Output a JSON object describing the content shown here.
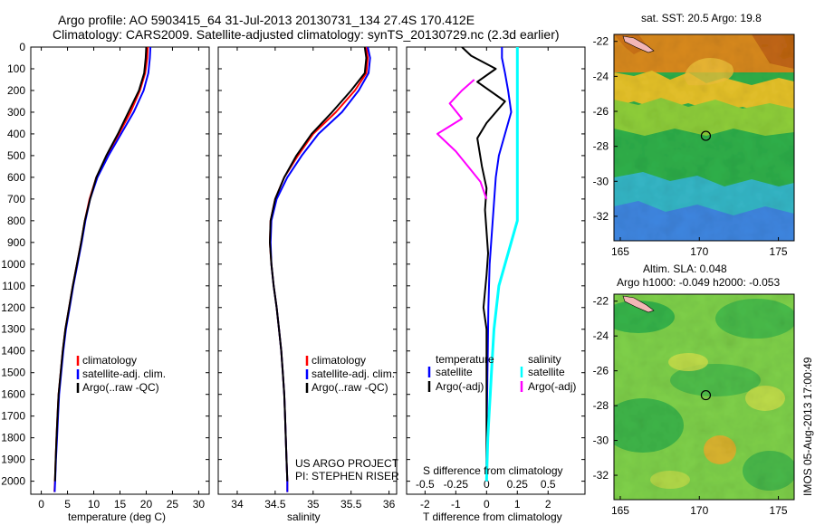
{
  "title_line1": "Argo profile: AO 5903415_64 31-Jul-2013 20130731_134 27.4S 170.412E",
  "title_line2": "Climatology: CARS2009. Satellite-adjusted climatology: synTS_20130729.nc (2.3d earlier)",
  "sst_title": "sat. SST: 20.5 Argo: 19.8",
  "sla_title1": "Altim. SLA: 0.048",
  "sla_title2": "Argo h1000: -0.049 h2000: -0.053",
  "project_line1": "US ARGO PROJECT",
  "project_line2": "PI: STEPHEN RISER",
  "watermark": "IMOS 05-Aug-2013 17:00:49",
  "legend_temp": [
    "climatology",
    "satellite-adj. clim.",
    "Argo(..raw -QC)"
  ],
  "legend_sal": [
    "climatology",
    "satellite-adj. clim.",
    "Argo(..raw -QC)"
  ],
  "legend_diff": {
    "temp_header": "temperature",
    "sal_header": "salinity",
    "temp_items": [
      "satellite",
      "Argo(-adj)"
    ],
    "sal_items": [
      "satellite",
      "Argo(-adj)"
    ]
  },
  "colors": {
    "climatology": "#ff0000",
    "satellite": "#0000ff",
    "argo": "#000000",
    "sal_satellite": "#00ffff",
    "sal_argo": "#ff00ff"
  },
  "chart_data": [
    {
      "type": "line",
      "id": "temperature",
      "xlabel": "temperature (deg C)",
      "ylabel": "",
      "xlim": [
        -2,
        32
      ],
      "ylim": [
        2060,
        0
      ],
      "xticks": [
        0,
        5,
        10,
        15,
        20,
        25,
        30
      ],
      "yticks": [
        0,
        100,
        200,
        300,
        400,
        500,
        600,
        700,
        800,
        900,
        1000,
        1100,
        1200,
        1300,
        1400,
        1500,
        1600,
        1700,
        1800,
        1900,
        2000
      ],
      "series": [
        {
          "name": "climatology",
          "color": "#ff0000",
          "x": [
            20.3,
            20.2,
            19.8,
            18.8,
            17.0,
            14.8,
            12.5,
            10.5,
            9.2,
            8.3,
            7.6,
            6.8,
            6.0,
            5.3,
            4.6,
            4.1,
            3.7,
            3.3,
            3.1,
            2.9,
            2.75,
            2.6,
            2.5
          ],
          "y": [
            0,
            50,
            120,
            200,
            300,
            400,
            500,
            600,
            700,
            800,
            900,
            1000,
            1100,
            1200,
            1300,
            1400,
            1500,
            1600,
            1700,
            1800,
            1900,
            2000,
            2050
          ]
        },
        {
          "name": "satellite-adj. clim.",
          "color": "#0000ff",
          "x": [
            20.8,
            20.7,
            20.4,
            19.5,
            17.6,
            15.2,
            12.8,
            10.7,
            9.3,
            8.4,
            7.7,
            6.9,
            6.1,
            5.4,
            4.7,
            4.2,
            3.8,
            3.4,
            3.2,
            3.0,
            2.8,
            2.65,
            2.55
          ],
          "y": [
            0,
            50,
            120,
            200,
            300,
            400,
            500,
            600,
            700,
            800,
            900,
            1000,
            1100,
            1200,
            1300,
            1400,
            1500,
            1600,
            1700,
            1800,
            1900,
            2000,
            2050
          ]
        },
        {
          "name": "Argo(..raw -QC)",
          "color": "#000000",
          "x": [
            20.0,
            19.9,
            19.6,
            18.6,
            16.6,
            14.6,
            12.4,
            10.5,
            9.3,
            8.3,
            7.6,
            6.8,
            6.0,
            5.3,
            4.6,
            4.1,
            3.7,
            3.3,
            3.1,
            2.9,
            2.75,
            2.6
          ],
          "y": [
            0,
            50,
            120,
            200,
            300,
            400,
            500,
            600,
            700,
            800,
            900,
            1000,
            1100,
            1200,
            1300,
            1400,
            1500,
            1600,
            1700,
            1800,
            1900,
            2000
          ]
        }
      ]
    },
    {
      "type": "line",
      "id": "salinity",
      "xlabel": "salinity",
      "ylabel": "",
      "xlim": [
        33.75,
        36.1
      ],
      "ylim": [
        2060,
        0
      ],
      "xticks": [
        34,
        34.5,
        35,
        35.5,
        36
      ],
      "series": [
        {
          "name": "climatology",
          "color": "#ff0000",
          "x": [
            35.7,
            35.72,
            35.7,
            35.55,
            35.3,
            35.0,
            34.8,
            34.62,
            34.5,
            34.44,
            34.43,
            34.45,
            34.48,
            34.52,
            34.55,
            34.58,
            34.6,
            34.62,
            34.63,
            34.64,
            34.65,
            34.66,
            34.66
          ],
          "y": [
            0,
            50,
            120,
            200,
            300,
            400,
            500,
            600,
            700,
            800,
            900,
            1000,
            1100,
            1200,
            1300,
            1400,
            1500,
            1600,
            1700,
            1800,
            1900,
            2000,
            2050
          ]
        },
        {
          "name": "satellite-adj. clim.",
          "color": "#0000ff",
          "x": [
            35.72,
            35.75,
            35.73,
            35.6,
            35.38,
            35.07,
            34.85,
            34.66,
            34.52,
            34.45,
            34.44,
            34.45,
            34.48,
            34.52,
            34.55,
            34.58,
            34.6,
            34.62,
            34.63,
            34.64,
            34.65,
            34.66,
            34.66
          ],
          "y": [
            0,
            50,
            120,
            200,
            300,
            400,
            500,
            600,
            700,
            800,
            900,
            1000,
            1100,
            1200,
            1300,
            1400,
            1500,
            1600,
            1700,
            1800,
            1900,
            2000,
            2050
          ]
        },
        {
          "name": "Argo(..raw -QC)",
          "color": "#000000",
          "x": [
            35.68,
            35.7,
            35.68,
            35.5,
            35.25,
            34.98,
            34.78,
            34.62,
            34.5,
            34.44,
            34.43,
            34.45,
            34.48,
            34.52,
            34.55,
            34.58,
            34.6,
            34.62,
            34.63,
            34.64,
            34.65,
            34.66
          ],
          "y": [
            0,
            50,
            120,
            200,
            300,
            400,
            500,
            600,
            700,
            800,
            900,
            1000,
            1100,
            1200,
            1300,
            1400,
            1500,
            1600,
            1700,
            1800,
            1900,
            2000
          ]
        }
      ]
    },
    {
      "type": "line",
      "id": "difference",
      "xlabel": "T difference from climatology",
      "top_axis_label": "S difference from climatology",
      "xlim": [
        -2.6,
        3.2
      ],
      "xticks": [
        -2,
        -1,
        0,
        1,
        2
      ],
      "top_ticks": [
        -0.5,
        -0.25,
        0,
        0.25,
        0.5
      ],
      "top_tick_labels": [
        "-0.5",
        "-0.25",
        "0",
        "0.25",
        "0.5"
      ],
      "series": [
        {
          "name": "temperature satellite",
          "color": "#0000ff",
          "x": [
            0.5,
            0.5,
            0.6,
            0.7,
            0.8,
            0.6,
            0.4,
            0.3,
            0.25,
            0.2,
            0.15,
            0.1,
            0.08,
            0.06,
            0.05,
            0.04,
            0.03,
            0.02,
            0.01,
            0.01,
            0.0
          ],
          "y": [
            0,
            50,
            120,
            200,
            300,
            400,
            500,
            600,
            700,
            800,
            900,
            1000,
            1100,
            1200,
            1300,
            1400,
            1500,
            1600,
            1700,
            1800,
            2000
          ]
        },
        {
          "name": "temperature Argo(-adj)",
          "color": "#000000",
          "x": [
            -0.8,
            -0.5,
            0.3,
            -0.3,
            0.6,
            0.0,
            -0.3,
            -0.15,
            0.0,
            -0.05,
            0.0,
            0.05,
            0.0,
            -0.1,
            0.0,
            0.0,
            0.0,
            0.0,
            0.0,
            0.0,
            0.0
          ],
          "y": [
            0,
            40,
            100,
            160,
            250,
            350,
            420,
            550,
            650,
            750,
            850,
            950,
            1050,
            1200,
            1300,
            1400,
            1500,
            1600,
            1700,
            1800,
            2000
          ]
        },
        {
          "name": "salinity satellite",
          "color": "#00ffff",
          "x": [
            0.25,
            0.25,
            0.25,
            0.25,
            0.25,
            0.25,
            0.25,
            0.25,
            0.25,
            0.2,
            0.15,
            0.1,
            0.08,
            0.06,
            0.05,
            0.04,
            0.03,
            0.02,
            0.01,
            0.0
          ],
          "y": [
            0,
            100,
            200,
            300,
            400,
            500,
            600,
            700,
            800,
            900,
            1000,
            1100,
            1200,
            1300,
            1400,
            1500,
            1600,
            1700,
            1800,
            2000
          ]
        },
        {
          "name": "salinity Argo(-adj)",
          "color": "#ff00ff",
          "x": [
            -0.1,
            -0.2,
            -0.3,
            -0.2,
            -0.4,
            -0.25,
            -0.15,
            -0.05,
            0.0
          ],
          "y": [
            150,
            200,
            260,
            330,
            400,
            480,
            550,
            620,
            700
          ]
        }
      ]
    }
  ],
  "maps": {
    "lon_ticks": [
      165,
      170,
      175
    ],
    "lat_ticks": [
      -22,
      -24,
      -26,
      -28,
      -30,
      -32
    ],
    "argo_lon": 170.412,
    "argo_lat": -27.4
  }
}
